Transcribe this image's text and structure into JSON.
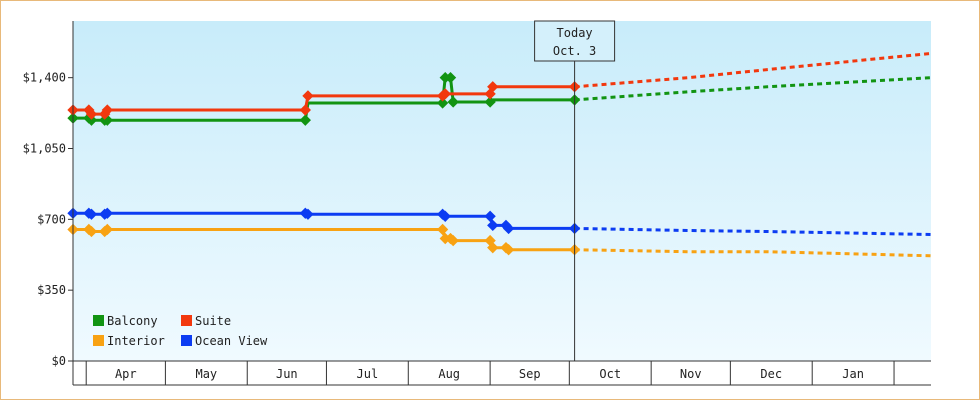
{
  "chart_data": {
    "type": "line",
    "title": "",
    "xlabel": "",
    "ylabel": "",
    "ylim": [
      0,
      1680
    ],
    "y_ticks": [
      {
        "value": 0,
        "label": "$0"
      },
      {
        "value": 350,
        "label": "$350"
      },
      {
        "value": 700,
        "label": "$700"
      },
      {
        "value": 1050,
        "label": "$1,050"
      },
      {
        "value": 1400,
        "label": "$1,400"
      }
    ],
    "x_range": [
      "2023-03-27",
      "2024-02-15"
    ],
    "months": [
      {
        "label": "Apr",
        "start": "2023-04-01",
        "end": "2023-05-01"
      },
      {
        "label": "May",
        "start": "2023-05-01",
        "end": "2023-06-01"
      },
      {
        "label": "Jun",
        "start": "2023-06-01",
        "end": "2023-07-01"
      },
      {
        "label": "Jul",
        "start": "2023-07-01",
        "end": "2023-08-01"
      },
      {
        "label": "Aug",
        "start": "2023-08-01",
        "end": "2023-09-01"
      },
      {
        "label": "Sep",
        "start": "2023-09-01",
        "end": "2023-10-01"
      },
      {
        "label": "Oct",
        "start": "2023-10-01",
        "end": "2023-11-01"
      },
      {
        "label": "Nov",
        "start": "2023-11-01",
        "end": "2023-12-01"
      },
      {
        "label": "Dec",
        "start": "2023-12-01",
        "end": "2024-01-01"
      },
      {
        "label": "Jan",
        "start": "2024-01-01",
        "end": "2024-02-01"
      }
    ],
    "today": {
      "date": "2023-10-03",
      "line1": "Today",
      "line2": "Oct. 3"
    },
    "grid": false,
    "legend": "bottom-left",
    "series": [
      {
        "name": "Balcony",
        "color": "#129412",
        "points": [
          [
            "2023-03-27",
            1200
          ],
          [
            "2023-04-02",
            1200
          ],
          [
            "2023-04-03",
            1190
          ],
          [
            "2023-04-08",
            1190
          ],
          [
            "2023-04-09",
            1190
          ],
          [
            "2023-06-23",
            1190
          ],
          [
            "2023-06-24",
            1275
          ],
          [
            "2023-08-14",
            1275
          ],
          [
            "2023-08-15",
            1400
          ],
          [
            "2023-08-17",
            1400
          ],
          [
            "2023-08-18",
            1280
          ],
          [
            "2023-09-01",
            1280
          ],
          [
            "2023-09-02",
            1290
          ],
          [
            "2023-10-03",
            1290
          ]
        ],
        "forecast": [
          [
            "2023-10-03",
            1290
          ],
          [
            "2023-11-15",
            1330
          ],
          [
            "2023-12-15",
            1355
          ],
          [
            "2024-02-15",
            1400
          ]
        ]
      },
      {
        "name": "Suite",
        "color": "#f2380e",
        "points": [
          [
            "2023-03-27",
            1240
          ],
          [
            "2023-04-02",
            1240
          ],
          [
            "2023-04-03",
            1220
          ],
          [
            "2023-04-08",
            1220
          ],
          [
            "2023-04-09",
            1240
          ],
          [
            "2023-06-23",
            1240
          ],
          [
            "2023-06-24",
            1310
          ],
          [
            "2023-08-14",
            1310
          ],
          [
            "2023-08-15",
            1320
          ],
          [
            "2023-09-01",
            1320
          ],
          [
            "2023-09-02",
            1355
          ],
          [
            "2023-10-03",
            1355
          ]
        ],
        "forecast": [
          [
            "2023-10-03",
            1355
          ],
          [
            "2023-11-15",
            1400
          ],
          [
            "2023-12-15",
            1440
          ],
          [
            "2024-02-15",
            1520
          ]
        ]
      },
      {
        "name": "Interior",
        "color": "#f8a213",
        "points": [
          [
            "2023-03-27",
            650
          ],
          [
            "2023-04-02",
            650
          ],
          [
            "2023-04-03",
            640
          ],
          [
            "2023-04-08",
            640
          ],
          [
            "2023-04-09",
            650
          ],
          [
            "2023-08-14",
            650
          ],
          [
            "2023-08-15",
            605
          ],
          [
            "2023-08-17",
            605
          ],
          [
            "2023-08-18",
            595
          ],
          [
            "2023-09-01",
            595
          ],
          [
            "2023-09-02",
            560
          ],
          [
            "2023-09-07",
            560
          ],
          [
            "2023-09-08",
            550
          ],
          [
            "2023-10-03",
            550
          ]
        ],
        "forecast": [
          [
            "2023-10-03",
            550
          ],
          [
            "2023-11-15",
            540
          ],
          [
            "2023-12-15",
            540
          ],
          [
            "2024-02-15",
            520
          ]
        ]
      },
      {
        "name": "Ocean View",
        "color": "#0c3cf2",
        "points": [
          [
            "2023-03-27",
            730
          ],
          [
            "2023-04-02",
            730
          ],
          [
            "2023-04-03",
            725
          ],
          [
            "2023-04-08",
            725
          ],
          [
            "2023-04-09",
            730
          ],
          [
            "2023-06-23",
            730
          ],
          [
            "2023-06-24",
            725
          ],
          [
            "2023-08-14",
            725
          ],
          [
            "2023-08-15",
            715
          ],
          [
            "2023-09-01",
            715
          ],
          [
            "2023-09-02",
            670
          ],
          [
            "2023-09-07",
            670
          ],
          [
            "2023-09-08",
            655
          ],
          [
            "2023-10-03",
            655
          ]
        ],
        "forecast": [
          [
            "2023-10-03",
            655
          ],
          [
            "2023-11-15",
            645
          ],
          [
            "2023-12-15",
            640
          ],
          [
            "2024-02-15",
            625
          ]
        ]
      }
    ],
    "markers": {
      "Balcony": [
        "2023-03-27",
        "2023-04-02",
        "2023-04-03",
        "2023-04-08",
        "2023-04-09",
        "2023-06-23",
        "2023-08-14",
        "2023-08-15",
        "2023-08-17",
        "2023-08-18",
        "2023-09-01",
        "2023-10-03"
      ],
      "Suite": [
        "2023-03-27",
        "2023-04-02",
        "2023-04-03",
        "2023-04-08",
        "2023-04-09",
        "2023-06-23",
        "2023-06-24",
        "2023-08-14",
        "2023-08-15",
        "2023-09-01",
        "2023-09-02",
        "2023-10-03"
      ],
      "Interior": [
        "2023-03-27",
        "2023-04-02",
        "2023-04-03",
        "2023-04-08",
        "2023-04-09",
        "2023-08-14",
        "2023-08-15",
        "2023-08-17",
        "2023-08-18",
        "2023-09-01",
        "2023-09-02",
        "2023-09-07",
        "2023-09-08",
        "2023-10-03"
      ],
      "Ocean View": [
        "2023-03-27",
        "2023-04-02",
        "2023-04-03",
        "2023-04-08",
        "2023-04-09",
        "2023-06-23",
        "2023-06-24",
        "2023-08-14",
        "2023-08-15",
        "2023-09-01",
        "2023-09-02",
        "2023-09-07",
        "2023-09-08",
        "2023-10-03"
      ]
    },
    "legend_order": [
      "Balcony",
      "Suite",
      "Interior",
      "Ocean View"
    ]
  },
  "colors": {
    "plot_top": "#c8ecfa",
    "plot_bottom": "#f0faff",
    "frame_border": "#e8b97a",
    "axis": "#333333"
  }
}
